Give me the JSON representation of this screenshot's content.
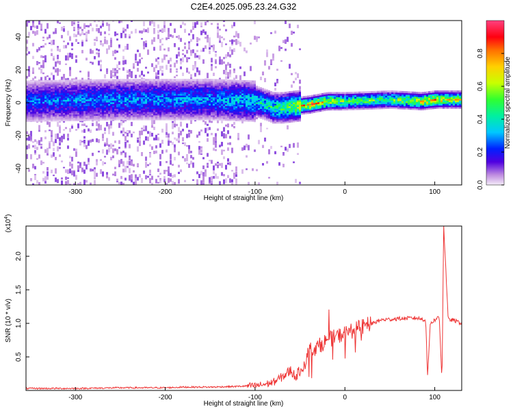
{
  "title": "C2E4.2025.095.23.24.G32",
  "chart_data": [
    {
      "type": "heatmap",
      "xlabel": "Height of straight line (km)",
      "ylabel": "Frequency (Hz)",
      "xlim": [
        -355,
        130
      ],
      "ylim": [
        -50,
        50
      ],
      "xticks": [
        -300,
        -200,
        -100,
        0,
        100
      ],
      "yticks": [
        -40,
        -20,
        0,
        20,
        40
      ],
      "colorbar": {
        "label": "Normalized spectral amplitude",
        "range": [
          0,
          1
        ],
        "ticks": [
          "0.0",
          "0.2",
          "0.4",
          "0.6",
          "0.8"
        ]
      },
      "ridge_points": [
        {
          "x": -355,
          "y": 1,
          "amp": 0.3
        },
        {
          "x": -250,
          "y": 2,
          "amp": 0.35
        },
        {
          "x": -150,
          "y": 2,
          "amp": 0.35
        },
        {
          "x": -100,
          "y": 1,
          "amp": 0.45
        },
        {
          "x": -80,
          "y": -3,
          "amp": 0.5
        },
        {
          "x": -70,
          "y": -3,
          "amp": 0.55
        },
        {
          "x": -40,
          "y": -1,
          "amp": 0.85
        },
        {
          "x": -20,
          "y": 1,
          "amp": 0.75
        },
        {
          "x": 0,
          "y": 1,
          "amp": 0.6
        },
        {
          "x": 50,
          "y": 2,
          "amp": 0.6
        },
        {
          "x": 85,
          "y": 1,
          "amp": 0.8
        },
        {
          "x": 100,
          "y": 2,
          "amp": 0.85
        },
        {
          "x": 130,
          "y": 2,
          "amp": 0.7
        }
      ]
    },
    {
      "type": "line",
      "xlabel": "Height of straight line (km)",
      "ylabel": "SNR (10 * v/v)",
      "scale_label": "(x10",
      "scale_exponent": "4",
      "xlim": [
        -355,
        130
      ],
      "ylim": [
        0,
        2.45
      ],
      "xticks": [
        -300,
        -200,
        -100,
        0,
        100
      ],
      "yticks": [
        "0.5",
        "1.0",
        "1.5",
        "2.0"
      ],
      "series": [
        {
          "color": "#ee3333",
          "x": [
            -355,
            -300,
            -250,
            -200,
            -180,
            -150,
            -120,
            -100,
            -90,
            -80,
            -70,
            -60,
            -55,
            -45,
            -40,
            -30,
            -20,
            -10,
            0,
            10,
            20,
            30,
            40,
            60,
            80,
            90,
            92,
            95,
            100,
            105,
            108,
            110,
            115,
            120,
            130
          ],
          "y": [
            0.03,
            0.03,
            0.04,
            0.04,
            0.05,
            0.05,
            0.06,
            0.07,
            0.09,
            0.12,
            0.2,
            0.3,
            0.2,
            0.4,
            0.6,
            0.65,
            0.75,
            0.8,
            0.85,
            0.9,
            0.95,
            1.0,
            1.05,
            1.07,
            1.08,
            1.05,
            0.2,
            1.0,
            1.05,
            1.1,
            0.15,
            2.45,
            1.05,
            1.05,
            1.0
          ]
        }
      ]
    }
  ]
}
